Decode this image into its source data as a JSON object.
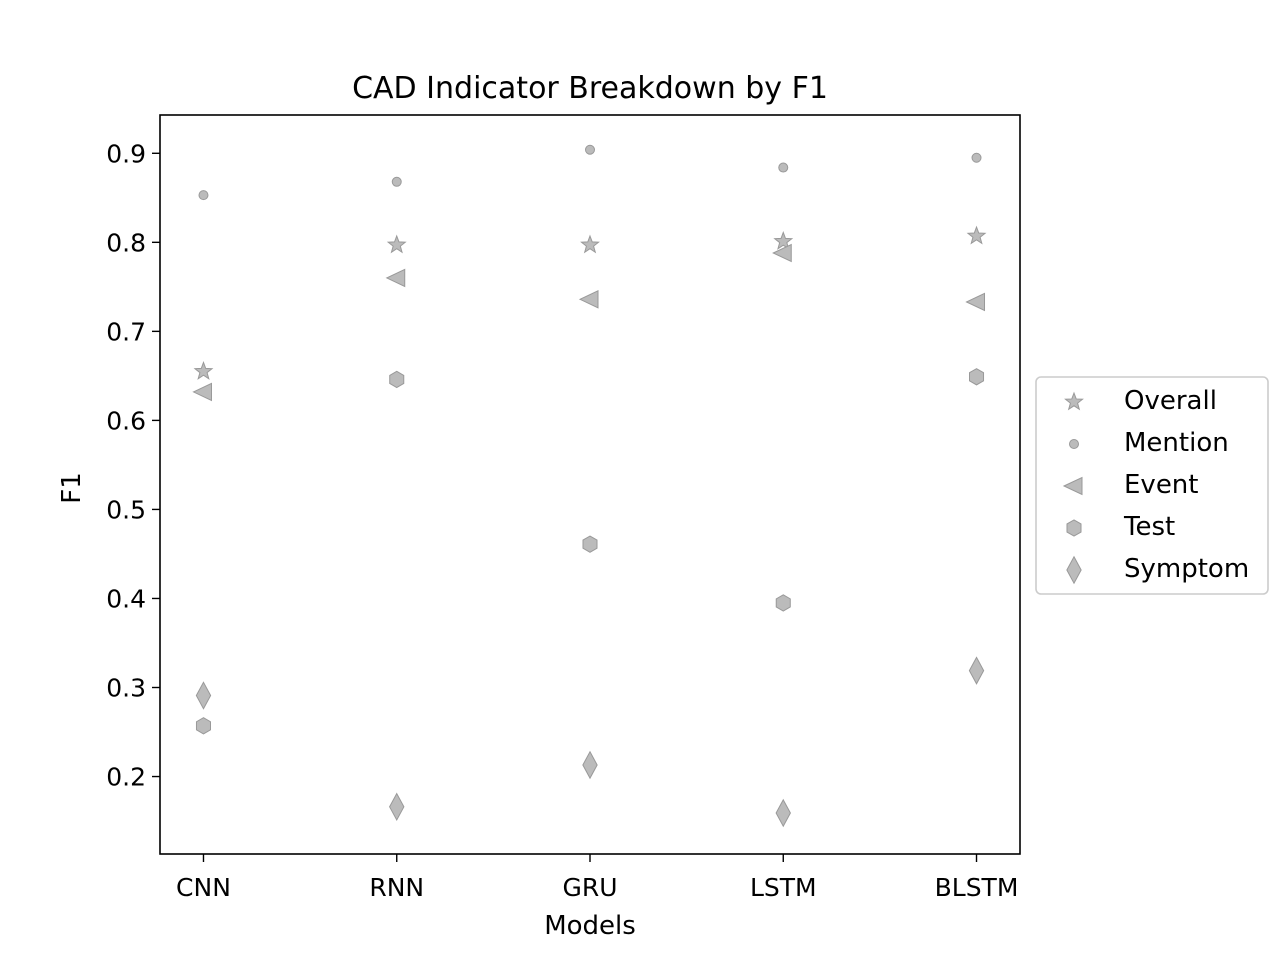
{
  "chart_data": {
    "type": "scatter",
    "title": "CAD Indicator Breakdown by F1",
    "xlabel": "Models",
    "ylabel": "F1",
    "categories": [
      "CNN",
      "RNN",
      "GRU",
      "LSTM",
      "BLSTM"
    ],
    "ylim": [
      0.113,
      0.943
    ],
    "yticks": [
      "0.2",
      "0.3",
      "0.4",
      "0.5",
      "0.6",
      "0.7",
      "0.8",
      "0.9"
    ],
    "grid": false,
    "legend_position": "outside right",
    "marker_color": "#bbbbbb",
    "series": [
      {
        "name": "Overall",
        "marker": "star",
        "values": [
          0.655,
          0.797,
          0.797,
          0.801,
          0.807
        ]
      },
      {
        "name": "Mention",
        "marker": "circle",
        "values": [
          0.853,
          0.868,
          0.904,
          0.884,
          0.895
        ]
      },
      {
        "name": "Event",
        "marker": "triangle-left",
        "values": [
          0.632,
          0.76,
          0.736,
          0.788,
          0.733
        ]
      },
      {
        "name": "Test",
        "marker": "hexagon",
        "values": [
          0.257,
          0.646,
          0.461,
          0.395,
          0.649
        ]
      },
      {
        "name": "Symptom",
        "marker": "diamond",
        "values": [
          0.291,
          0.166,
          0.213,
          0.159,
          0.319
        ]
      }
    ]
  }
}
